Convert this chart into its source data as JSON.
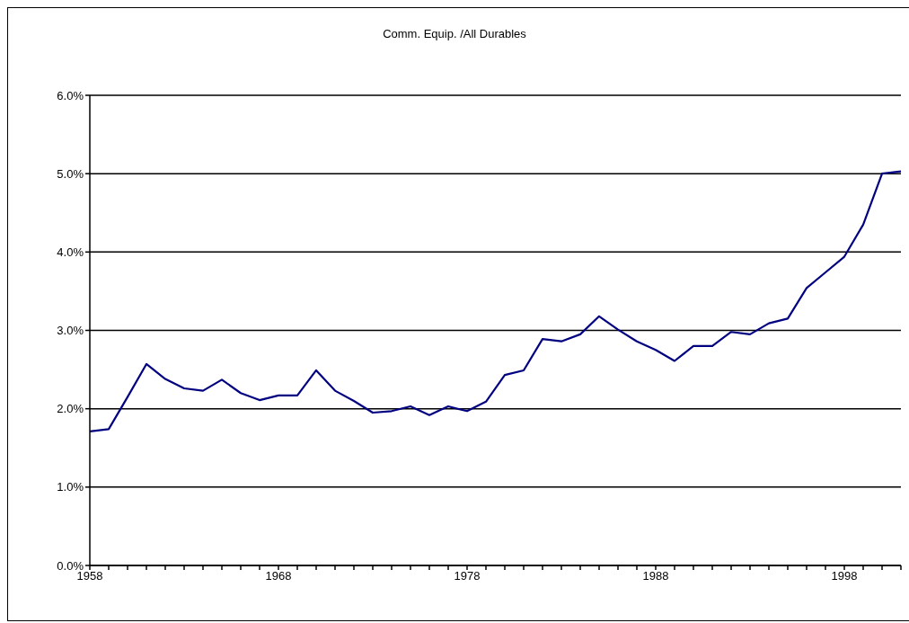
{
  "chart_data": {
    "type": "line",
    "title": "Comm. Equip. /All Durables",
    "categories": [
      "1958",
      null,
      null,
      null,
      null,
      null,
      null,
      null,
      null,
      null,
      "1968",
      null,
      null,
      null,
      null,
      null,
      null,
      null,
      null,
      null,
      "1978",
      null,
      null,
      null,
      null,
      null,
      null,
      null,
      null,
      null,
      "1988",
      null,
      null,
      null,
      null,
      null,
      null,
      null,
      null,
      null,
      "1998",
      null,
      null,
      null
    ],
    "series": [
      {
        "color": "#000080",
        "values": [
          1.71,
          1.74,
          2.15,
          2.57,
          2.38,
          2.26,
          2.23,
          2.37,
          2.2,
          2.11,
          2.17,
          2.17,
          2.49,
          2.23,
          2.1,
          1.95,
          1.97,
          2.03,
          1.92,
          2.03,
          1.97,
          2.09,
          2.43,
          2.49,
          2.89,
          2.86,
          2.95,
          3.18,
          3.01,
          2.86,
          2.75,
          2.61,
          2.8,
          2.8,
          2.98,
          2.95,
          3.09,
          3.15,
          3.54,
          3.74,
          3.94,
          4.35,
          5.0,
          5.03
        ]
      }
    ],
    "ylim": [
      0,
      6
    ],
    "yticks": [
      {
        "value": 0,
        "label": "0.0%"
      },
      {
        "value": 1,
        "label": "1.0%"
      },
      {
        "value": 2,
        "label": "2.0%"
      },
      {
        "value": 3,
        "label": "3.0%"
      },
      {
        "value": 4,
        "label": "4.0%"
      },
      {
        "value": 5,
        "label": "5.0%"
      },
      {
        "value": 6,
        "label": "6.0%"
      }
    ],
    "grid": "y"
  }
}
